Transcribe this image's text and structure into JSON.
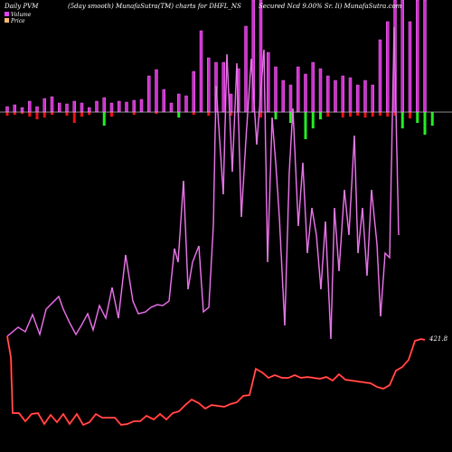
{
  "header": {
    "left": "Daily PVM",
    "center": "(5day smooth) MunafaSutra(TM) charts for DHFL_NS",
    "right": "Secured Ncd 9.00% Sr. Ii) MunafaSutra.com"
  },
  "legend": [
    {
      "label": "Volume",
      "color": "#e040fb"
    },
    {
      "label": "Price",
      "color": "#ffb870"
    }
  ],
  "colors": {
    "background": "#000000",
    "volume_up": "#cc33cc",
    "volume_up_edge": "#ff66ff",
    "volume_down_red": "#ee1111",
    "volume_down_green": "#22ee22",
    "pvm_line": "#cc44cc",
    "price_line": "#ff2222",
    "baseline": "#bbbbbb"
  },
  "chart_data": {
    "type": "line",
    "last_price_label": "421.8",
    "volume_up": [
      6,
      8,
      5,
      12,
      6,
      15,
      17,
      10,
      9,
      12,
      10,
      5,
      12,
      16,
      10,
      12,
      11,
      13,
      14,
      40,
      47,
      25,
      10,
      20,
      18,
      45,
      90,
      60,
      55,
      55,
      20,
      48,
      95,
      130,
      130,
      66,
      50,
      35,
      30,
      50,
      42,
      55,
      48,
      40,
      35,
      40,
      38,
      30,
      35,
      30,
      80,
      100,
      230,
      240,
      100,
      200,
      240
    ],
    "volume_down": [
      {
        "i": 0,
        "v": 4,
        "c": "r"
      },
      {
        "i": 1,
        "v": 3,
        "c": "r"
      },
      {
        "i": 2,
        "v": 2,
        "c": "r"
      },
      {
        "i": 3,
        "v": 5,
        "c": "r"
      },
      {
        "i": 4,
        "v": 8,
        "c": "r"
      },
      {
        "i": 5,
        "v": 6,
        "c": "r"
      },
      {
        "i": 6,
        "v": 3,
        "c": "r"
      },
      {
        "i": 8,
        "v": 4,
        "c": "r"
      },
      {
        "i": 9,
        "v": 12,
        "c": "r"
      },
      {
        "i": 10,
        "v": 5,
        "c": "r"
      },
      {
        "i": 11,
        "v": 3,
        "c": "r"
      },
      {
        "i": 13,
        "v": 15,
        "c": "g"
      },
      {
        "i": 14,
        "v": 5,
        "c": "r"
      },
      {
        "i": 17,
        "v": 3,
        "c": "r"
      },
      {
        "i": 20,
        "v": 2,
        "c": "r"
      },
      {
        "i": 23,
        "v": 6,
        "c": "g"
      },
      {
        "i": 25,
        "v": 3,
        "c": "r"
      },
      {
        "i": 27,
        "v": 4,
        "c": "r"
      },
      {
        "i": 30,
        "v": 4,
        "c": "r"
      },
      {
        "i": 34,
        "v": 6,
        "c": "r"
      },
      {
        "i": 36,
        "v": 8,
        "c": "g"
      },
      {
        "i": 38,
        "v": 12,
        "c": "g"
      },
      {
        "i": 40,
        "v": 30,
        "c": "g"
      },
      {
        "i": 41,
        "v": 18,
        "c": "g"
      },
      {
        "i": 42,
        "v": 8,
        "c": "g"
      },
      {
        "i": 43,
        "v": 5,
        "c": "r"
      },
      {
        "i": 45,
        "v": 6,
        "c": "r"
      },
      {
        "i": 46,
        "v": 5,
        "c": "r"
      },
      {
        "i": 47,
        "v": 4,
        "c": "r"
      },
      {
        "i": 48,
        "v": 6,
        "c": "r"
      },
      {
        "i": 49,
        "v": 5,
        "c": "r"
      },
      {
        "i": 50,
        "v": 4,
        "c": "r"
      },
      {
        "i": 51,
        "v": 5,
        "c": "r"
      },
      {
        "i": 52,
        "v": 4,
        "c": "r"
      },
      {
        "i": 53,
        "v": 18,
        "c": "g"
      },
      {
        "i": 54,
        "v": 7,
        "c": "r"
      },
      {
        "i": 55,
        "v": 12,
        "c": "g"
      },
      {
        "i": 56,
        "v": 25,
        "c": "g"
      },
      {
        "i": 57,
        "v": 15,
        "c": "g"
      }
    ],
    "pvm": [
      [
        8,
        372
      ],
      [
        20,
        362
      ],
      [
        28,
        367
      ],
      [
        36,
        348
      ],
      [
        44,
        370
      ],
      [
        51,
        342
      ],
      [
        58,
        335
      ],
      [
        65,
        328
      ],
      [
        70,
        342
      ],
      [
        77,
        357
      ],
      [
        84,
        370
      ],
      [
        90,
        360
      ],
      [
        97,
        347
      ],
      [
        103,
        365
      ],
      [
        110,
        338
      ],
      [
        117,
        352
      ],
      [
        124,
        318
      ],
      [
        131,
        352
      ],
      [
        139,
        282
      ],
      [
        147,
        333
      ],
      [
        153,
        347
      ],
      [
        161,
        345
      ],
      [
        167,
        340
      ],
      [
        174,
        337
      ],
      [
        180,
        338
      ],
      [
        187,
        333
      ],
      [
        193,
        275
      ],
      [
        197,
        290
      ],
      [
        203,
        200
      ],
      [
        208,
        320
      ],
      [
        213,
        290
      ],
      [
        220,
        272
      ],
      [
        225,
        345
      ],
      [
        231,
        340
      ],
      [
        236,
        250
      ],
      [
        239,
        95
      ],
      [
        247,
        215
      ],
      [
        251,
        60
      ],
      [
        257,
        190
      ],
      [
        262,
        70
      ],
      [
        267,
        240
      ],
      [
        272,
        155
      ],
      [
        278,
        65
      ],
      [
        284,
        160
      ],
      [
        292,
        55
      ],
      [
        296,
        290
      ],
      [
        301,
        130
      ],
      [
        305,
        180
      ],
      [
        309,
        240
      ],
      [
        315,
        360
      ],
      [
        320,
        190
      ],
      [
        324,
        120
      ],
      [
        330,
        250
      ],
      [
        335,
        180
      ],
      [
        340,
        280
      ],
      [
        345,
        230
      ],
      [
        350,
        260
      ],
      [
        355,
        320
      ],
      [
        360,
        245
      ],
      [
        366,
        375
      ],
      [
        370,
        230
      ],
      [
        375,
        300
      ],
      [
        381,
        210
      ],
      [
        386,
        260
      ],
      [
        392,
        150
      ],
      [
        396,
        280
      ],
      [
        401,
        230
      ],
      [
        406,
        305
      ],
      [
        411,
        210
      ],
      [
        417,
        270
      ],
      [
        421,
        350
      ],
      [
        426,
        280
      ],
      [
        431,
        285
      ],
      [
        436,
        30
      ],
      [
        441,
        260
      ]
    ],
    "price": [
      [
        8,
        372
      ],
      [
        12,
        395
      ],
      [
        14,
        457
      ],
      [
        21,
        457
      ],
      [
        28,
        466
      ],
      [
        35,
        458
      ],
      [
        42,
        457
      ],
      [
        49,
        469
      ],
      [
        56,
        459
      ],
      [
        63,
        467
      ],
      [
        70,
        458
      ],
      [
        77,
        469
      ],
      [
        85,
        458
      ],
      [
        92,
        470
      ],
      [
        99,
        467
      ],
      [
        106,
        458
      ],
      [
        113,
        462
      ],
      [
        120,
        462
      ],
      [
        127,
        462
      ],
      [
        134,
        470
      ],
      [
        141,
        469
      ],
      [
        148,
        466
      ],
      [
        155,
        466
      ],
      [
        162,
        460
      ],
      [
        170,
        464
      ],
      [
        177,
        458
      ],
      [
        184,
        464
      ],
      [
        191,
        457
      ],
      [
        198,
        455
      ],
      [
        205,
        448
      ],
      [
        212,
        442
      ],
      [
        220,
        446
      ],
      [
        227,
        452
      ],
      [
        234,
        448
      ],
      [
        241,
        449
      ],
      [
        248,
        450
      ],
      [
        255,
        447
      ],
      [
        262,
        445
      ],
      [
        269,
        438
      ],
      [
        276,
        437
      ],
      [
        283,
        408
      ],
      [
        290,
        412
      ],
      [
        297,
        418
      ],
      [
        304,
        415
      ],
      [
        312,
        418
      ],
      [
        319,
        418
      ],
      [
        326,
        415
      ],
      [
        333,
        418
      ],
      [
        340,
        417
      ],
      [
        347,
        418
      ],
      [
        354,
        419
      ],
      [
        361,
        417
      ],
      [
        368,
        421
      ],
      [
        375,
        414
      ],
      [
        382,
        420
      ],
      [
        389,
        421
      ],
      [
        396,
        422
      ],
      [
        403,
        423
      ],
      [
        410,
        424
      ],
      [
        417,
        428
      ],
      [
        424,
        430
      ],
      [
        431,
        426
      ],
      [
        438,
        410
      ],
      [
        445,
        406
      ],
      [
        452,
        398
      ],
      [
        459,
        377
      ],
      [
        466,
        375
      ],
      [
        470,
        376
      ]
    ]
  }
}
